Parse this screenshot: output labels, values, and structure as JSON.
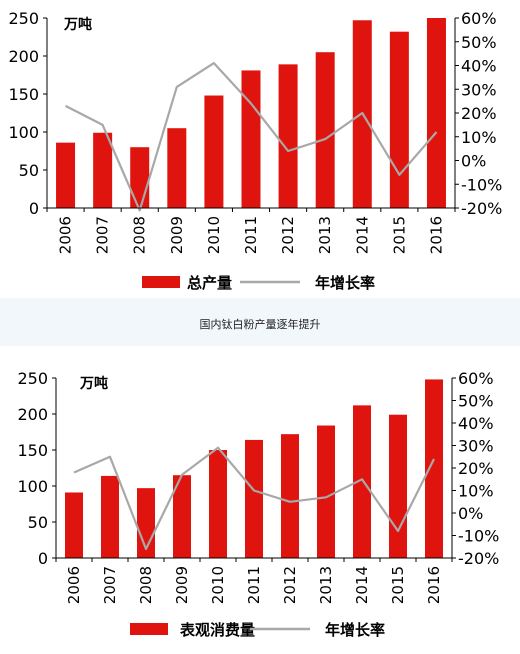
{
  "caption": "国内钛白粉产量逐年提升",
  "colors": {
    "bar": "#e0140e",
    "line": "#a8a8a8",
    "axis": "#000000"
  },
  "chart_data": [
    {
      "type": "bar",
      "unit_label": "万吨",
      "categories": [
        "2006",
        "2007",
        "2008",
        "2009",
        "2010",
        "2011",
        "2012",
        "2013",
        "2014",
        "2015",
        "2016"
      ],
      "series": [
        {
          "name": "总产量",
          "type": "bar",
          "axis": "left",
          "values": [
            86,
            99,
            80,
            105,
            148,
            181,
            189,
            205,
            247,
            232,
            250
          ]
        },
        {
          "name": "年增长率",
          "type": "line",
          "axis": "right",
          "values": [
            23,
            15,
            -21,
            31,
            41,
            24,
            4,
            9,
            20,
            -6,
            12
          ]
        }
      ],
      "left_ticks": [
        "250",
        "200",
        "150",
        "100",
        "50",
        "0"
      ],
      "right_ticks": [
        "60%",
        "50%",
        "40%",
        "30%",
        "20%",
        "10%",
        "0%",
        "-10%",
        "-20%"
      ],
      "ylim_left": [
        0,
        250
      ],
      "ylim_right": [
        -20,
        60
      ],
      "legend_position": "bottom"
    },
    {
      "type": "bar",
      "unit_label": "万吨",
      "categories": [
        "2006",
        "2007",
        "2008",
        "2009",
        "2010",
        "2011",
        "2012",
        "2013",
        "2014",
        "2015",
        "2016"
      ],
      "series": [
        {
          "name": "表观消费量",
          "type": "bar",
          "axis": "left",
          "values": [
            91,
            114,
            97,
            115,
            150,
            164,
            172,
            184,
            212,
            199,
            248
          ]
        },
        {
          "name": "年增长率",
          "type": "line",
          "axis": "right",
          "values": [
            18,
            25,
            -16,
            17,
            29,
            10,
            5,
            7,
            15,
            -8,
            24
          ]
        }
      ],
      "left_ticks": [
        "250",
        "200",
        "150",
        "100",
        "50",
        "0"
      ],
      "right_ticks": [
        "60%",
        "50%",
        "40%",
        "30%",
        "20%",
        "10%",
        "0%",
        "-10%",
        "-20%"
      ],
      "ylim_left": [
        0,
        250
      ],
      "ylim_right": [
        -20,
        60
      ],
      "legend_position": "bottom"
    }
  ]
}
